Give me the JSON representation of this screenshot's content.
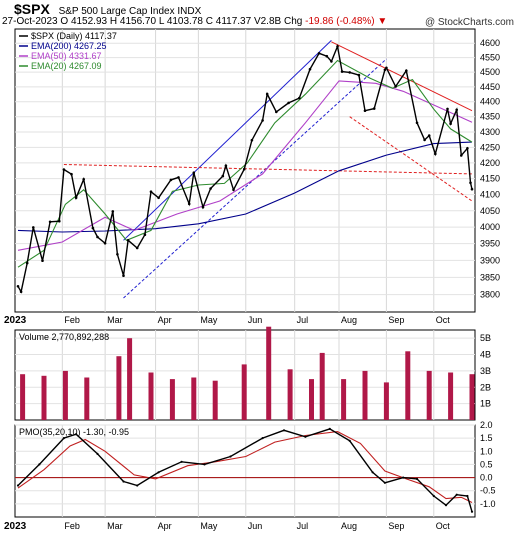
{
  "header": {
    "symbol": "$SPX",
    "name": "S&P 500 Large Cap Index",
    "exchange": "INDX",
    "date": "27-Oct-2023",
    "open_label": "O",
    "open": "4152.93",
    "high_label": "H",
    "high": "4156.70",
    "low_label": "L",
    "low": "4103.78",
    "close_label": "C",
    "close": "4117.37",
    "volume_label": "V",
    "volume": "2.8B",
    "change_label": "Chg",
    "change": "-19.86 (-0.48%)",
    "credit": "@ StockCharts.com"
  },
  "legend": {
    "price": "$SPX (Daily) 4117.37",
    "ema200": "EMA(200) 4267.25",
    "ema50": "EMA(50) 4331.67",
    "ema20": "EMA(20) 4267.09"
  },
  "volume_legend": "Volume 2,770,892,288",
  "pmo_legend": "PMO(35,20,10) -1.30, -0.95",
  "colors": {
    "price": "#000000",
    "ema200": "#00008b",
    "ema50": "#b040c8",
    "ema20": "#2e8b2e",
    "channel": "#2020d0",
    "resistance": "#e02020",
    "volume": "#b01848",
    "pmo": "#000000",
    "pmo_signal": "#c02020",
    "zero_line": "#a00000"
  },
  "months": [
    "2023",
    "Feb",
    "Mar",
    "Apr",
    "May",
    "Jun",
    "Jul",
    "Aug",
    "Sep",
    "Oct"
  ],
  "chart_data": [
    {
      "type": "line",
      "title": "$SPX (Daily)",
      "ylim": [
        3750,
        4650
      ],
      "yticks": [
        3800,
        3850,
        3900,
        3950,
        4000,
        4050,
        4100,
        4150,
        4200,
        4250,
        4300,
        4350,
        4400,
        4450,
        4500,
        4550,
        4600
      ],
      "log_scale": true,
      "grid": true,
      "legend_position": "top-left",
      "x_range": [
        "2023-01-03",
        "2023-10-27"
      ],
      "series": [
        {
          "name": "$SPX (Daily)",
          "kind": "close",
          "points": [
            [
              "2023-01-03",
              3824
            ],
            [
              "2023-01-05",
              3808
            ],
            [
              "2023-01-09",
              3892
            ],
            [
              "2023-01-13",
              3999
            ],
            [
              "2023-01-19",
              3899
            ],
            [
              "2023-01-24",
              4016
            ],
            [
              "2023-01-30",
              4018
            ],
            [
              "2023-02-02",
              4179
            ],
            [
              "2023-02-07",
              4164
            ],
            [
              "2023-02-10",
              4090
            ],
            [
              "2023-02-15",
              4148
            ],
            [
              "2023-02-21",
              3997
            ],
            [
              "2023-02-24",
              3970
            ],
            [
              "2023-03-01",
              3951
            ],
            [
              "2023-03-06",
              4048
            ],
            [
              "2023-03-09",
              3918
            ],
            [
              "2023-03-13",
              3855
            ],
            [
              "2023-03-16",
              3960
            ],
            [
              "2023-03-22",
              3937
            ],
            [
              "2023-03-27",
              3977
            ],
            [
              "2023-03-31",
              4109
            ],
            [
              "2023-04-05",
              4090
            ],
            [
              "2023-04-13",
              4146
            ],
            [
              "2023-04-18",
              4154
            ],
            [
              "2023-04-25",
              4071
            ],
            [
              "2023-04-28",
              4169
            ],
            [
              "2023-05-04",
              4061
            ],
            [
              "2023-05-09",
              4119
            ],
            [
              "2023-05-17",
              4158
            ],
            [
              "2023-05-19",
              4191
            ],
            [
              "2023-05-24",
              4115
            ],
            [
              "2023-05-31",
              4180
            ],
            [
              "2023-06-05",
              4273
            ],
            [
              "2023-06-12",
              4338
            ],
            [
              "2023-06-15",
              4426
            ],
            [
              "2023-06-21",
              4366
            ],
            [
              "2023-06-29",
              4396
            ],
            [
              "2023-07-06",
              4412
            ],
            [
              "2023-07-13",
              4510
            ],
            [
              "2023-07-19",
              4565
            ],
            [
              "2023-07-24",
              4555
            ],
            [
              "2023-07-27",
              4537
            ],
            [
              "2023-07-31",
              4589
            ],
            [
              "2023-08-03",
              4502
            ],
            [
              "2023-08-08",
              4499
            ],
            [
              "2023-08-14",
              4490
            ],
            [
              "2023-08-18",
              4370
            ],
            [
              "2023-08-24",
              4377
            ],
            [
              "2023-08-31",
              4508
            ],
            [
              "2023-09-01",
              4515
            ],
            [
              "2023-09-07",
              4451
            ],
            [
              "2023-09-14",
              4505
            ],
            [
              "2023-09-21",
              4330
            ],
            [
              "2023-09-26",
              4274
            ],
            [
              "2023-09-29",
              4288
            ],
            [
              "2023-10-03",
              4229
            ],
            [
              "2023-10-11",
              4376
            ],
            [
              "2023-10-13",
              4327
            ],
            [
              "2023-10-17",
              4373
            ],
            [
              "2023-10-20",
              4224
            ],
            [
              "2023-10-24",
              4247
            ],
            [
              "2023-10-26",
              4137
            ],
            [
              "2023-10-27",
              4117
            ]
          ]
        },
        {
          "name": "EMA(200)",
          "points": [
            [
              "2023-01-03",
              3990
            ],
            [
              "2023-02-01",
              3985
            ],
            [
              "2023-03-01",
              3988
            ],
            [
              "2023-04-03",
              3995
            ],
            [
              "2023-05-01",
              4010
            ],
            [
              "2023-06-01",
              4040
            ],
            [
              "2023-07-03",
              4105
            ],
            [
              "2023-08-01",
              4175
            ],
            [
              "2023-09-01",
              4225
            ],
            [
              "2023-10-02",
              4262
            ],
            [
              "2023-10-27",
              4267
            ]
          ]
        },
        {
          "name": "EMA(50)",
          "points": [
            [
              "2023-01-03",
              3930
            ],
            [
              "2023-02-01",
              3955
            ],
            [
              "2023-03-01",
              4030
            ],
            [
              "2023-03-20",
              3990
            ],
            [
              "2023-04-17",
              4040
            ],
            [
              "2023-05-15",
              4080
            ],
            [
              "2023-06-12",
              4165
            ],
            [
              "2023-07-10",
              4330
            ],
            [
              "2023-08-01",
              4470
            ],
            [
              "2023-08-25",
              4462
            ],
            [
              "2023-09-12",
              4435
            ],
            [
              "2023-10-06",
              4380
            ],
            [
              "2023-10-27",
              4332
            ]
          ]
        },
        {
          "name": "EMA(20)",
          "points": [
            [
              "2023-01-03",
              3880
            ],
            [
              "2023-01-20",
              3930
            ],
            [
              "2023-02-03",
              4070
            ],
            [
              "2023-02-15",
              4115
            ],
            [
              "2023-03-01",
              4040
            ],
            [
              "2023-03-15",
              3960
            ],
            [
              "2023-03-31",
              3990
            ],
            [
              "2023-04-14",
              4110
            ],
            [
              "2023-05-01",
              4130
            ],
            [
              "2023-05-18",
              4135
            ],
            [
              "2023-06-02",
              4200
            ],
            [
              "2023-06-20",
              4330
            ],
            [
              "2023-07-10",
              4425
            ],
            [
              "2023-07-31",
              4540
            ],
            [
              "2023-08-21",
              4480
            ],
            [
              "2023-09-05",
              4445
            ],
            [
              "2023-09-18",
              4475
            ],
            [
              "2023-10-02",
              4375
            ],
            [
              "2023-10-13",
              4310
            ],
            [
              "2023-10-27",
              4267
            ]
          ]
        }
      ],
      "annotations": [
        {
          "kind": "channel-upper",
          "points": [
            [
              "2023-03-13",
              3960
            ],
            [
              "2023-07-27",
              4610
            ]
          ]
        },
        {
          "kind": "channel-lower",
          "points": [
            [
              "2023-03-13",
              3790
            ],
            [
              "2023-09-01",
              4545
            ]
          ]
        },
        {
          "kind": "resistance",
          "points": [
            [
              "2023-07-27",
              4605
            ],
            [
              "2023-10-27",
              4370
            ]
          ]
        },
        {
          "kind": "support-dashed",
          "points": [
            [
              "2023-02-02",
              4195
            ],
            [
              "2023-10-27",
              4165
            ]
          ]
        },
        {
          "kind": "falling-dashed",
          "points": [
            [
              "2023-08-08",
              4350
            ],
            [
              "2023-10-27",
              4080
            ]
          ]
        }
      ]
    },
    {
      "type": "bar",
      "title": "Volume",
      "ylim": [
        0,
        5.5
      ],
      "yticks": [
        "1B",
        "2B",
        "3B",
        "4B",
        "5B"
      ],
      "x_range": [
        "2023-01-03",
        "2023-10-27"
      ],
      "series": [
        {
          "name": "Volume",
          "points": [
            [
              "2023-01-06",
              2.8
            ],
            [
              "2023-01-20",
              2.7
            ],
            [
              "2023-02-03",
              3.0
            ],
            [
              "2023-02-17",
              2.6
            ],
            [
              "2023-03-10",
              3.9
            ],
            [
              "2023-03-17",
              5.0
            ],
            [
              "2023-03-31",
              2.9
            ],
            [
              "2023-04-14",
              2.5
            ],
            [
              "2023-04-28",
              2.6
            ],
            [
              "2023-05-12",
              2.4
            ],
            [
              "2023-05-31",
              3.4
            ],
            [
              "2023-06-16",
              5.7
            ],
            [
              "2023-06-30",
              3.1
            ],
            [
              "2023-07-14",
              2.5
            ],
            [
              "2023-07-21",
              4.1
            ],
            [
              "2023-08-04",
              2.5
            ],
            [
              "2023-08-18",
              3.0
            ],
            [
              "2023-09-01",
              2.3
            ],
            [
              "2023-09-15",
              4.2
            ],
            [
              "2023-09-29",
              3.0
            ],
            [
              "2023-10-13",
              2.9
            ],
            [
              "2023-10-27",
              2.8
            ]
          ]
        }
      ]
    },
    {
      "type": "line",
      "title": "PMO(35,20,10)",
      "ylim": [
        -1.5,
        2.0
      ],
      "yticks": [
        -1.0,
        -0.5,
        0.0,
        0.5,
        1.0,
        1.5,
        2.0
      ],
      "x_range": [
        "2023-01-03",
        "2023-10-27"
      ],
      "series": [
        {
          "name": "PMO",
          "points": [
            [
              "2023-01-03",
              -0.3
            ],
            [
              "2023-01-17",
              0.5
            ],
            [
              "2023-02-02",
              1.5
            ],
            [
              "2023-02-10",
              1.65
            ],
            [
              "2023-02-24",
              0.9
            ],
            [
              "2023-03-13",
              -0.15
            ],
            [
              "2023-03-22",
              -0.3
            ],
            [
              "2023-04-05",
              0.2
            ],
            [
              "2023-04-20",
              0.6
            ],
            [
              "2023-05-05",
              0.5
            ],
            [
              "2023-05-22",
              0.8
            ],
            [
              "2023-06-12",
              1.5
            ],
            [
              "2023-06-26",
              1.8
            ],
            [
              "2023-07-10",
              1.55
            ],
            [
              "2023-07-26",
              1.85
            ],
            [
              "2023-08-08",
              1.4
            ],
            [
              "2023-08-23",
              0.2
            ],
            [
              "2023-08-31",
              -0.2
            ],
            [
              "2023-09-12",
              0.0
            ],
            [
              "2023-09-21",
              -0.05
            ],
            [
              "2023-10-02",
              -0.7
            ],
            [
              "2023-10-10",
              -1.05
            ],
            [
              "2023-10-17",
              -0.65
            ],
            [
              "2023-10-24",
              -0.7
            ],
            [
              "2023-10-27",
              -1.3
            ]
          ]
        },
        {
          "name": "Signal",
          "points": [
            [
              "2023-01-03",
              -0.4
            ],
            [
              "2023-01-20",
              0.3
            ],
            [
              "2023-02-06",
              1.2
            ],
            [
              "2023-02-16",
              1.45
            ],
            [
              "2023-03-01",
              1.0
            ],
            [
              "2023-03-20",
              0.1
            ],
            [
              "2023-04-03",
              -0.05
            ],
            [
              "2023-04-24",
              0.45
            ],
            [
              "2023-05-12",
              0.6
            ],
            [
              "2023-06-01",
              0.8
            ],
            [
              "2023-06-20",
              1.35
            ],
            [
              "2023-07-10",
              1.6
            ],
            [
              "2023-07-31",
              1.75
            ],
            [
              "2023-08-15",
              1.3
            ],
            [
              "2023-08-31",
              0.25
            ],
            [
              "2023-09-14",
              -0.05
            ],
            [
              "2023-09-29",
              -0.35
            ],
            [
              "2023-10-10",
              -0.8
            ],
            [
              "2023-10-20",
              -0.75
            ],
            [
              "2023-10-27",
              -0.95
            ]
          ]
        }
      ],
      "reference_line": 0.0
    }
  ]
}
